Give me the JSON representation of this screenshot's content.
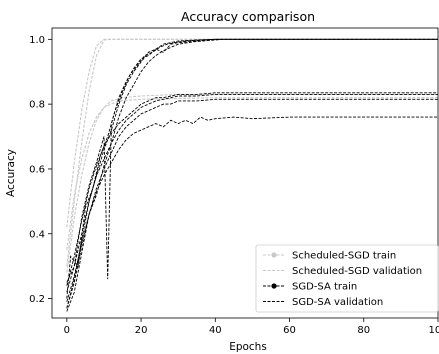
{
  "chart_data": {
    "type": "line",
    "title": "Accuracy comparison",
    "xlabel": "Epochs",
    "ylabel": "Accuracy",
    "xlim": [
      -4,
      100
    ],
    "ylim": [
      0.14,
      1.035
    ],
    "xticks": [
      0,
      20,
      40,
      60,
      80,
      100
    ],
    "yticks": [
      0.2,
      0.4,
      0.6,
      0.8,
      1.0
    ],
    "ytick_labels": [
      "0.2",
      "0.4",
      "0.6",
      "0.8",
      "1.0"
    ],
    "grid": false,
    "legend_position": "lower-right",
    "legend": [
      {
        "name": "Scheduled-SGD train",
        "color": "#c8c8c8",
        "dash": "dash",
        "marker": "circle"
      },
      {
        "name": "Scheduled-SGD validation",
        "color": "#c8c8c8",
        "dash": "dash",
        "marker": "none"
      },
      {
        "name": "SGD-SA train",
        "color": "#000000",
        "dash": "dash",
        "marker": "circle"
      },
      {
        "name": "SGD-SA validation",
        "color": "#000000",
        "dash": "dash",
        "marker": "none"
      }
    ],
    "series": [
      {
        "group": "Scheduled-SGD train",
        "color": "#c8c8c8",
        "x": [
          0,
          2,
          4,
          6,
          8,
          10,
          12,
          14,
          20,
          30,
          40,
          50,
          60,
          70,
          80,
          90,
          100
        ],
        "y": [
          0.3,
          0.5,
          0.68,
          0.84,
          0.95,
          0.998,
          1.0,
          1.0,
          1.0,
          1.0,
          1.0,
          1.0,
          1.0,
          1.0,
          1.0,
          1.0,
          1.0
        ]
      },
      {
        "group": "Scheduled-SGD train",
        "color": "#c8c8c8",
        "x": [
          0,
          2,
          4,
          6,
          8,
          10,
          12,
          20,
          40,
          60,
          80,
          100
        ],
        "y": [
          0.42,
          0.62,
          0.78,
          0.9,
          0.98,
          1.0,
          1.0,
          1.0,
          1.0,
          1.0,
          1.0,
          1.0
        ]
      },
      {
        "group": "Scheduled-SGD validation",
        "color": "#c8c8c8",
        "x": [
          0,
          2,
          4,
          6,
          8,
          10,
          12,
          15,
          20,
          30,
          40,
          60,
          80,
          100
        ],
        "y": [
          0.28,
          0.45,
          0.58,
          0.68,
          0.75,
          0.79,
          0.81,
          0.82,
          0.825,
          0.83,
          0.83,
          0.83,
          0.83,
          0.83
        ]
      },
      {
        "group": "Scheduled-SGD validation",
        "color": "#c8c8c8",
        "x": [
          0,
          2,
          4,
          6,
          8,
          10,
          14,
          20,
          40,
          60,
          80,
          100
        ],
        "y": [
          0.35,
          0.52,
          0.63,
          0.71,
          0.76,
          0.79,
          0.81,
          0.815,
          0.82,
          0.82,
          0.82,
          0.82
        ]
      },
      {
        "group": "SGD-SA train",
        "color": "#000000",
        "x": [
          0,
          2,
          4,
          6,
          8,
          10,
          12,
          14,
          16,
          18,
          20,
          22,
          24,
          26,
          28,
          30,
          35,
          40,
          50,
          60,
          70,
          80,
          90,
          100
        ],
        "y": [
          0.17,
          0.26,
          0.38,
          0.5,
          0.58,
          0.66,
          0.72,
          0.8,
          0.86,
          0.9,
          0.93,
          0.96,
          0.97,
          0.985,
          0.99,
          0.995,
          0.998,
          1.0,
          1.0,
          1.0,
          1.0,
          1.0,
          1.0,
          1.0
        ]
      },
      {
        "group": "SGD-SA train",
        "color": "#000000",
        "x": [
          0,
          2,
          4,
          6,
          8,
          10,
          11,
          12,
          14,
          16,
          18,
          20,
          22,
          24,
          26,
          28,
          30,
          35,
          40,
          50,
          60,
          80,
          100
        ],
        "y": [
          0.25,
          0.3,
          0.45,
          0.55,
          0.62,
          0.7,
          0.26,
          0.74,
          0.82,
          0.87,
          0.91,
          0.94,
          0.95,
          0.97,
          0.96,
          0.985,
          0.99,
          0.995,
          1.0,
          1.0,
          1.0,
          1.0,
          1.0
        ]
      },
      {
        "group": "SGD-SA train",
        "color": "#000000",
        "x": [
          0,
          1,
          3,
          5,
          7,
          9,
          11,
          13,
          15,
          17,
          19,
          21,
          23,
          25,
          27,
          29,
          32,
          36,
          40,
          50,
          70,
          100
        ],
        "y": [
          0.2,
          0.33,
          0.3,
          0.48,
          0.54,
          0.64,
          0.7,
          0.78,
          0.84,
          0.89,
          0.92,
          0.95,
          0.96,
          0.975,
          0.985,
          0.99,
          0.995,
          0.998,
          1.0,
          1.0,
          1.0,
          1.0
        ]
      },
      {
        "group": "SGD-SA train",
        "color": "#000000",
        "x": [
          0,
          2,
          4,
          6,
          8,
          10,
          12,
          14,
          16,
          18,
          20,
          22,
          24,
          26,
          28,
          30,
          34,
          38,
          42,
          50,
          60,
          80,
          100
        ],
        "y": [
          0.16,
          0.22,
          0.34,
          0.46,
          0.52,
          0.61,
          0.68,
          0.76,
          0.82,
          0.86,
          0.9,
          0.93,
          0.95,
          0.965,
          0.975,
          0.985,
          0.992,
          0.996,
          1.0,
          1.0,
          1.0,
          1.0,
          1.0
        ]
      },
      {
        "group": "SGD-SA validation",
        "color": "#000000",
        "x": [
          0,
          2,
          4,
          6,
          8,
          10,
          12,
          14,
          16,
          18,
          20,
          22,
          24,
          26,
          28,
          30,
          35,
          40,
          50,
          60,
          70,
          80,
          90,
          100
        ],
        "y": [
          0.17,
          0.25,
          0.36,
          0.46,
          0.54,
          0.6,
          0.65,
          0.7,
          0.73,
          0.75,
          0.77,
          0.78,
          0.79,
          0.8,
          0.8,
          0.81,
          0.81,
          0.815,
          0.815,
          0.815,
          0.815,
          0.815,
          0.815,
          0.815
        ]
      },
      {
        "group": "SGD-SA validation",
        "color": "#000000",
        "x": [
          0,
          2,
          4,
          6,
          8,
          10,
          12,
          14,
          16,
          18,
          20,
          22,
          24,
          26,
          28,
          30,
          35,
          40,
          50,
          60,
          80,
          100
        ],
        "y": [
          0.22,
          0.3,
          0.4,
          0.5,
          0.58,
          0.63,
          0.68,
          0.72,
          0.75,
          0.77,
          0.79,
          0.8,
          0.81,
          0.815,
          0.82,
          0.825,
          0.825,
          0.83,
          0.83,
          0.83,
          0.83,
          0.83
        ]
      },
      {
        "group": "SGD-SA validation",
        "color": "#000000",
        "x": [
          0,
          2,
          4,
          6,
          8,
          10,
          12,
          14,
          16,
          18,
          20,
          22,
          24,
          26,
          28,
          30,
          32,
          34,
          36,
          38,
          40,
          45,
          50,
          60,
          70,
          80,
          90,
          100
        ],
        "y": [
          0.19,
          0.27,
          0.37,
          0.46,
          0.53,
          0.58,
          0.62,
          0.66,
          0.69,
          0.71,
          0.72,
          0.73,
          0.74,
          0.73,
          0.75,
          0.74,
          0.75,
          0.74,
          0.76,
          0.75,
          0.755,
          0.76,
          0.755,
          0.76,
          0.76,
          0.76,
          0.76,
          0.76
        ]
      },
      {
        "group": "SGD-SA validation",
        "color": "#000000",
        "x": [
          0,
          2,
          4,
          6,
          8,
          10,
          12,
          14,
          16,
          18,
          20,
          22,
          24,
          26,
          28,
          30,
          35,
          40,
          50,
          60,
          80,
          100
        ],
        "y": [
          0.24,
          0.33,
          0.44,
          0.54,
          0.61,
          0.67,
          0.71,
          0.74,
          0.76,
          0.78,
          0.8,
          0.81,
          0.82,
          0.82,
          0.825,
          0.83,
          0.83,
          0.835,
          0.835,
          0.835,
          0.835,
          0.835
        ]
      }
    ]
  }
}
